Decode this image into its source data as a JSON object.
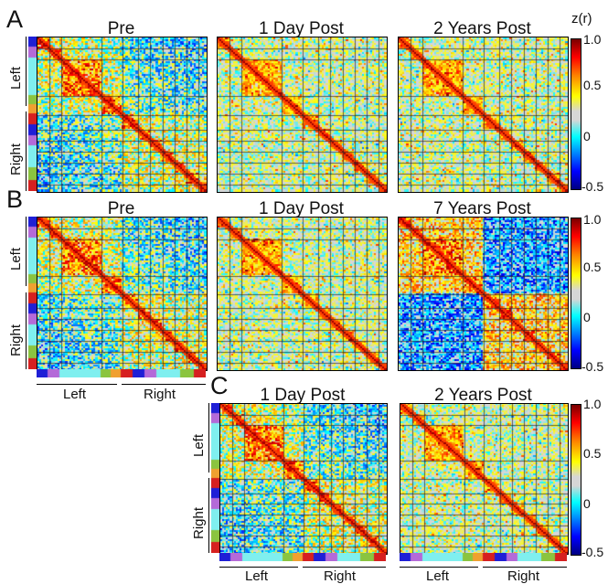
{
  "chart_data": [
    {
      "panel": "A",
      "type": "heatmap",
      "row_axis_labels": [
        "Left",
        "Right"
      ],
      "colorbar": {
        "title": "z(r)",
        "ticks": [
          "1.0",
          "0.5",
          "0",
          "-0.5"
        ],
        "range": [
          -0.5,
          1.0
        ]
      },
      "matrices": [
        {
          "title": "Pre"
        },
        {
          "title": "1 Day Post"
        },
        {
          "title": "2 Years Post"
        }
      ]
    },
    {
      "panel": "B",
      "type": "heatmap",
      "row_axis_labels": [
        "Left",
        "Right"
      ],
      "column_axis_labels": [
        "Left",
        "Right"
      ],
      "colorbar": {
        "title": "",
        "ticks": [
          "1.0",
          "0.5",
          "0",
          "-0.5"
        ],
        "range": [
          -0.5,
          1.0
        ]
      },
      "matrices": [
        {
          "title": "Pre"
        },
        {
          "title": "1 Day Post"
        },
        {
          "title": "7 Years Post"
        }
      ]
    },
    {
      "panel": "C",
      "type": "heatmap",
      "row_axis_labels": [
        "Left",
        "Right"
      ],
      "column_axis_labels": [
        "Left",
        "Right"
      ],
      "colorbar": {
        "title": "",
        "ticks": [
          "1.0",
          "0.5",
          "0",
          "-0.5"
        ],
        "range": [
          -0.5,
          1.0
        ]
      },
      "matrices": [
        {
          "title": "1 Day Post"
        },
        {
          "title": "2 Years Post"
        }
      ]
    }
  ],
  "colors": {
    "network_strip": [
      "#1f1fd6",
      "#b46ad8",
      "#7fefef",
      "#7fefef",
      "#7fefef",
      "#8bc43f",
      "#f0a030",
      "#d62020"
    ],
    "colormap": [
      "#000080",
      "#0000ff",
      "#00ffff",
      "#d6d6d6",
      "#ffff00",
      "#ff8000",
      "#ff0000",
      "#7a0000"
    ]
  }
}
